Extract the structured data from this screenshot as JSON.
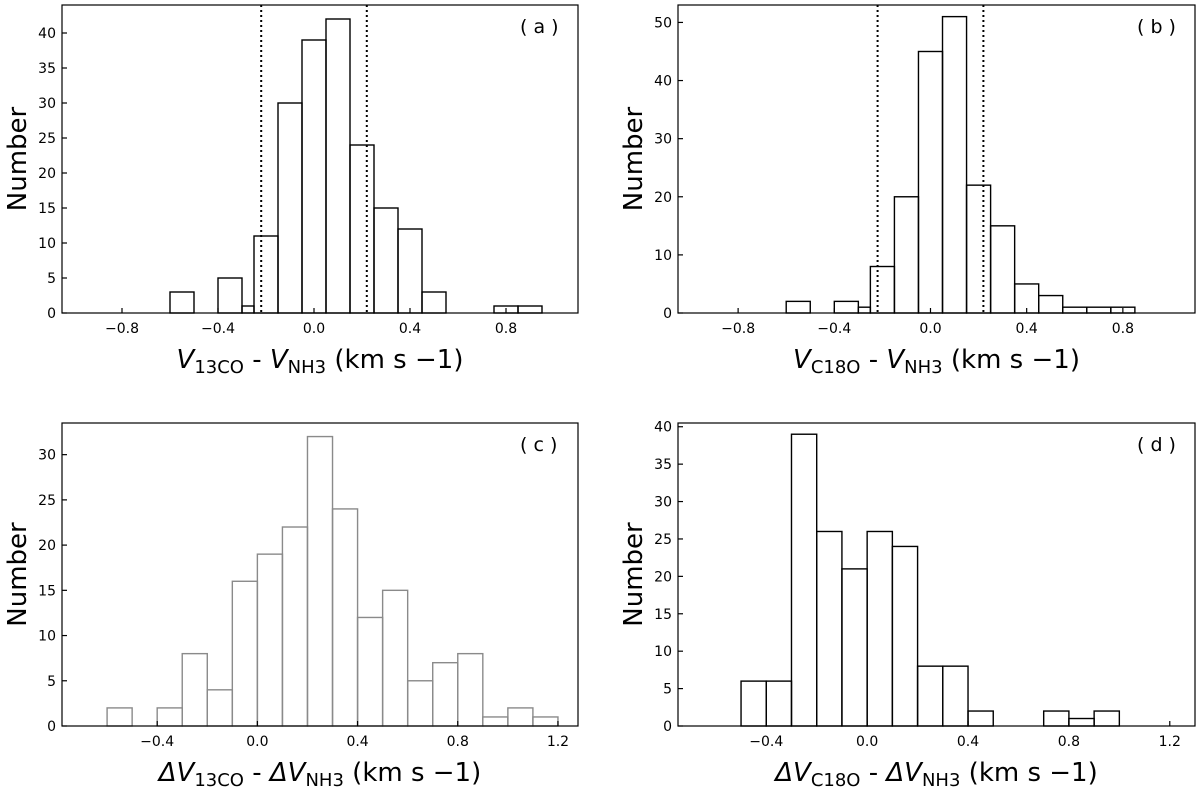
{
  "chart_data": [
    {
      "type": "bar",
      "panel_label": "( a )",
      "ylabel": "Number",
      "xlabel": {
        "V": "V",
        "sub1": "13CO",
        "sep": " - ",
        "V2": "V",
        "sub2": "NH3",
        "unit": " (km s −1)"
      },
      "bin_edges": [
        -1.0,
        -0.9,
        -0.8,
        -0.7,
        -0.6,
        -0.5,
        -0.4,
        -0.3,
        -0.25,
        -0.15,
        -0.05,
        0.05,
        0.15,
        0.25,
        0.35,
        0.45,
        0.55,
        0.65,
        0.75,
        0.85,
        0.95,
        1.05
      ],
      "values": [
        0,
        0,
        0,
        0,
        3,
        0,
        5,
        1,
        11,
        30,
        39,
        42,
        24,
        15,
        12,
        3,
        0,
        0,
        1,
        1,
        0
      ],
      "xlim": [
        -1.05,
        1.1
      ],
      "ylim": [
        0,
        44
      ],
      "xticks": [
        -0.8,
        -0.4,
        0.0,
        0.4,
        0.8
      ],
      "xtick_labels": [
        "−0.8",
        "−0.4",
        "0.0",
        "0.4",
        "0.8"
      ],
      "yticks": [
        0,
        5,
        10,
        15,
        20,
        25,
        30,
        35,
        40
      ],
      "ytick_labels": [
        "0",
        "5",
        "10",
        "15",
        "20",
        "25",
        "30",
        "35",
        "40"
      ],
      "vlines": [
        -0.22,
        0.22
      ],
      "bar_color": "#000000"
    },
    {
      "type": "bar",
      "panel_label": "( b )",
      "ylabel": "Number",
      "xlabel": {
        "V": "V",
        "sub1": "C18O",
        "sep": " - ",
        "V2": "V",
        "sub2": "NH3",
        "unit": " (km s −1)"
      },
      "bin_edges": [
        -1.0,
        -0.9,
        -0.8,
        -0.7,
        -0.6,
        -0.5,
        -0.4,
        -0.3,
        -0.25,
        -0.15,
        -0.05,
        0.05,
        0.15,
        0.25,
        0.35,
        0.45,
        0.55,
        0.65,
        0.75,
        0.85,
        0.95,
        1.05
      ],
      "values": [
        0,
        0,
        0,
        0,
        2,
        0,
        2,
        1,
        8,
        20,
        45,
        51,
        22,
        15,
        5,
        3,
        1,
        1,
        1,
        0,
        0
      ],
      "xlim": [
        -1.05,
        1.1
      ],
      "ylim": [
        0,
        53
      ],
      "xticks": [
        -0.8,
        -0.4,
        0.0,
        0.4,
        0.8
      ],
      "xtick_labels": [
        "−0.8",
        "−0.4",
        "0.0",
        "0.4",
        "0.8"
      ],
      "yticks": [
        0,
        10,
        20,
        30,
        40,
        50
      ],
      "ytick_labels": [
        "0",
        "10",
        "20",
        "30",
        "40",
        "50"
      ],
      "vlines": [
        -0.22,
        0.22
      ],
      "bar_color": "#000000"
    },
    {
      "type": "bar",
      "panel_label": "( c )",
      "ylabel": "Number",
      "xlabel": {
        "V": "ΔV",
        "sub1": "13CO",
        "sep": " - ",
        "V2": "ΔV",
        "sub2": "NH3",
        "unit": " (km s −1)"
      },
      "bin_edges": [
        -0.6,
        -0.5,
        -0.4,
        -0.3,
        -0.2,
        -0.1,
        0.0,
        0.1,
        0.2,
        0.3,
        0.4,
        0.5,
        0.6,
        0.7,
        0.8,
        0.9,
        1.0,
        1.1,
        1.2
      ],
      "values": [
        2,
        0,
        2,
        8,
        4,
        16,
        19,
        22,
        32,
        24,
        12,
        15,
        5,
        7,
        8,
        1,
        2,
        1
      ],
      "xlim": [
        -0.78,
        1.28
      ],
      "ylim": [
        0,
        33.5
      ],
      "xticks": [
        -0.4,
        0.0,
        0.4,
        0.8,
        1.2
      ],
      "xtick_labels": [
        "−0.4",
        "0.0",
        "0.4",
        "0.8",
        "1.2"
      ],
      "yticks": [
        0,
        5,
        10,
        15,
        20,
        25,
        30
      ],
      "ytick_labels": [
        "0",
        "5",
        "10",
        "15",
        "20",
        "25",
        "30"
      ],
      "vlines": [],
      "bar_color": "#8a8a8a"
    },
    {
      "type": "bar",
      "panel_label": "( d )",
      "ylabel": "Number",
      "xlabel": {
        "V": "ΔV",
        "sub1": "C18O",
        "sep": " - ",
        "V2": "ΔV",
        "sub2": "NH3",
        "unit": " (km s −1)"
      },
      "bin_edges": [
        -0.7,
        -0.6,
        -0.5,
        -0.4,
        -0.3,
        -0.2,
        -0.1,
        0.0,
        0.1,
        0.2,
        0.3,
        0.4,
        0.5,
        0.6,
        0.7,
        0.8,
        0.9,
        1.0,
        1.1,
        1.2
      ],
      "values": [
        0,
        0,
        6,
        6,
        39,
        26,
        21,
        26,
        24,
        8,
        8,
        2,
        0,
        0,
        2,
        1,
        2,
        0,
        0
      ],
      "xlim": [
        -0.75,
        1.3
      ],
      "ylim": [
        0,
        40.5
      ],
      "xticks": [
        -0.4,
        0.0,
        0.4,
        0.8,
        1.2
      ],
      "xtick_labels": [
        "−0.4",
        "0.0",
        "0.4",
        "0.8",
        "1.2"
      ],
      "yticks": [
        0,
        5,
        10,
        15,
        20,
        25,
        30,
        35,
        40
      ],
      "ytick_labels": [
        "0",
        "5",
        "10",
        "15",
        "20",
        "25",
        "30",
        "35",
        "40"
      ],
      "vlines": [],
      "bar_color": "#000000"
    }
  ]
}
